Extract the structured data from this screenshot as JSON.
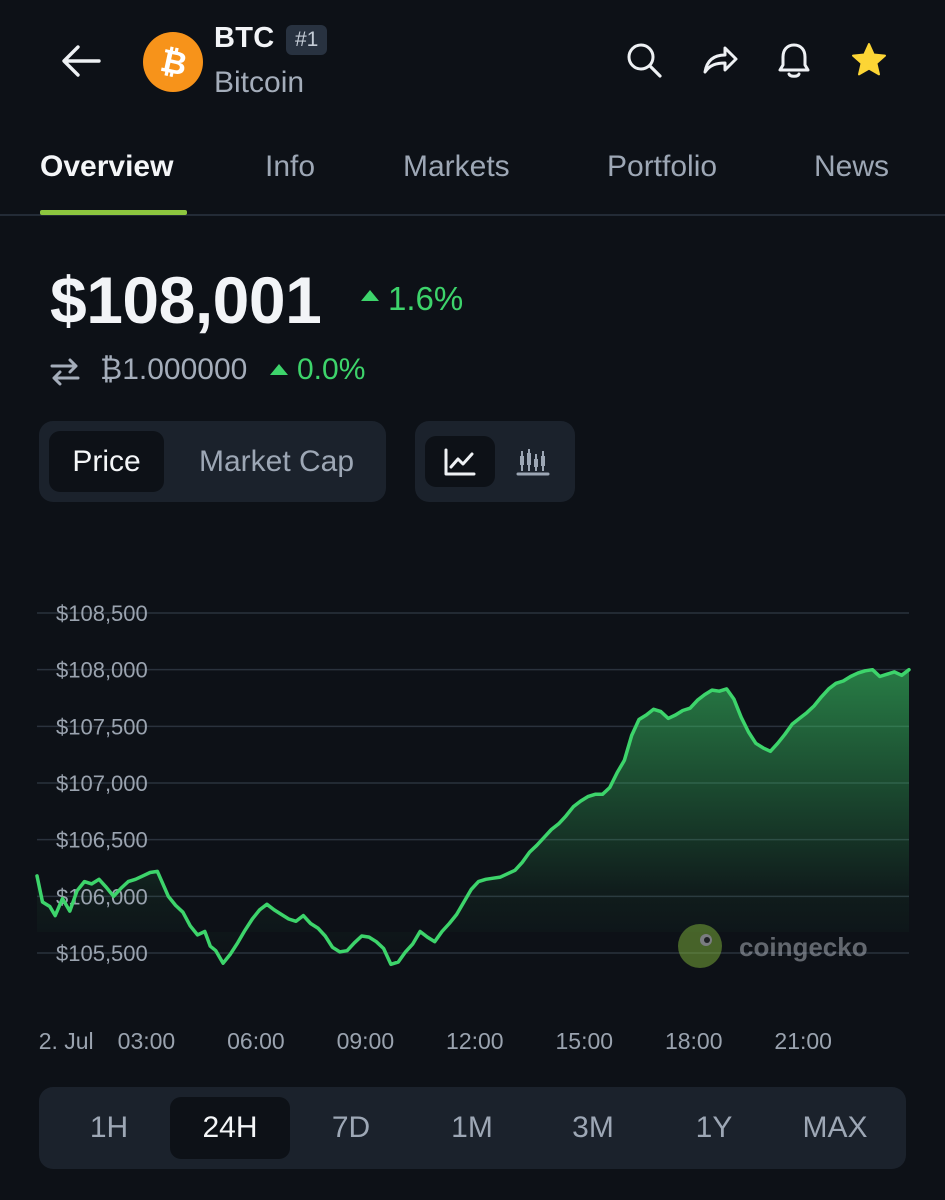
{
  "header": {
    "symbol": "BTC",
    "rank": "#1",
    "name": "Bitcoin",
    "icons": [
      "back-arrow-icon",
      "bitcoin-logo",
      "search-icon",
      "share-icon",
      "bell-icon",
      "star-icon"
    ]
  },
  "tabs": [
    {
      "label": "Overview",
      "active": true
    },
    {
      "label": "Info"
    },
    {
      "label": "Markets"
    },
    {
      "label": "Portfolio"
    },
    {
      "label": "News"
    }
  ],
  "price": {
    "usd": "$108,001",
    "usd_change": "1.6%",
    "btc": "₿1.000000",
    "btc_change": "0.0%"
  },
  "chart_toggle": {
    "options": [
      "Price",
      "Market Cap"
    ],
    "selected": "Price",
    "view_icons": [
      "line-chart-icon",
      "candlestick-chart-icon"
    ],
    "selected_view": "line-chart-icon"
  },
  "watermark": "coingecko",
  "colors": {
    "background": "#0d1117",
    "positive": "#3dd46b",
    "tab_underline": "#8dc63f",
    "bitcoin_orange": "#f7931a"
  },
  "chart_data": {
    "type": "area",
    "title": "",
    "xlabel": "",
    "ylabel": "",
    "ylim": [
      105400,
      108600
    ],
    "y_ticks": [
      {
        "value": 108500,
        "label": "$108,500"
      },
      {
        "value": 108000,
        "label": "$108,000"
      },
      {
        "value": 107500,
        "label": "$107,500"
      },
      {
        "value": 107000,
        "label": "$107,000"
      },
      {
        "value": 106500,
        "label": "$106,500"
      },
      {
        "value": 106000,
        "label": "$106,000"
      },
      {
        "value": 105500,
        "label": "$105,500"
      }
    ],
    "x_ticks": [
      {
        "hour": 0.8,
        "label": "2. Jul"
      },
      {
        "hour": 3,
        "label": "03:00"
      },
      {
        "hour": 6,
        "label": "06:00"
      },
      {
        "hour": 9,
        "label": "09:00"
      },
      {
        "hour": 12,
        "label": "12:00"
      },
      {
        "hour": 15,
        "label": "15:00"
      },
      {
        "hour": 18,
        "label": "18:00"
      },
      {
        "hour": 21,
        "label": "21:00"
      }
    ],
    "xlim": [
      0,
      23.9
    ],
    "grid": true,
    "series": [
      {
        "color": "#3dd46b",
        "points": [
          [
            0.0,
            106180
          ],
          [
            0.15,
            105950
          ],
          [
            0.35,
            105910
          ],
          [
            0.5,
            105830
          ],
          [
            0.7,
            105980
          ],
          [
            0.9,
            105870
          ],
          [
            1.1,
            106050
          ],
          [
            1.3,
            106130
          ],
          [
            1.5,
            106110
          ],
          [
            1.7,
            106150
          ],
          [
            1.9,
            106080
          ],
          [
            2.1,
            106000
          ],
          [
            2.3,
            106070
          ],
          [
            2.5,
            106130
          ],
          [
            2.7,
            106150
          ],
          [
            2.9,
            106180
          ],
          [
            3.1,
            106210
          ],
          [
            3.3,
            106220
          ],
          [
            3.45,
            106110
          ],
          [
            3.6,
            106000
          ],
          [
            3.8,
            105920
          ],
          [
            4.0,
            105860
          ],
          [
            4.2,
            105740
          ],
          [
            4.4,
            105660
          ],
          [
            4.6,
            105690
          ],
          [
            4.75,
            105560
          ],
          [
            4.9,
            105520
          ],
          [
            5.1,
            105410
          ],
          [
            5.3,
            105490
          ],
          [
            5.5,
            105590
          ],
          [
            5.7,
            105700
          ],
          [
            5.9,
            105800
          ],
          [
            6.1,
            105880
          ],
          [
            6.3,
            105930
          ],
          [
            6.5,
            105880
          ],
          [
            6.7,
            105840
          ],
          [
            6.9,
            105800
          ],
          [
            7.1,
            105780
          ],
          [
            7.3,
            105830
          ],
          [
            7.5,
            105760
          ],
          [
            7.7,
            105720
          ],
          [
            7.9,
            105650
          ],
          [
            8.1,
            105550
          ],
          [
            8.3,
            105510
          ],
          [
            8.5,
            105520
          ],
          [
            8.7,
            105590
          ],
          [
            8.9,
            105650
          ],
          [
            9.1,
            105640
          ],
          [
            9.3,
            105600
          ],
          [
            9.5,
            105540
          ],
          [
            9.7,
            105400
          ],
          [
            9.9,
            105420
          ],
          [
            10.1,
            105510
          ],
          [
            10.3,
            105580
          ],
          [
            10.5,
            105690
          ],
          [
            10.7,
            105640
          ],
          [
            10.9,
            105600
          ],
          [
            11.1,
            105690
          ],
          [
            11.3,
            105760
          ],
          [
            11.5,
            105840
          ],
          [
            11.7,
            105950
          ],
          [
            11.9,
            106060
          ],
          [
            12.1,
            106130
          ],
          [
            12.3,
            106150
          ],
          [
            12.5,
            106160
          ],
          [
            12.7,
            106170
          ],
          [
            12.9,
            106200
          ],
          [
            13.1,
            106230
          ],
          [
            13.3,
            106300
          ],
          [
            13.5,
            106390
          ],
          [
            13.7,
            106450
          ],
          [
            13.9,
            106520
          ],
          [
            14.1,
            106590
          ],
          [
            14.3,
            106640
          ],
          [
            14.5,
            106710
          ],
          [
            14.7,
            106790
          ],
          [
            14.9,
            106840
          ],
          [
            15.1,
            106880
          ],
          [
            15.3,
            106900
          ],
          [
            15.5,
            106900
          ],
          [
            15.7,
            106960
          ],
          [
            15.9,
            107090
          ],
          [
            16.1,
            107200
          ],
          [
            16.3,
            107420
          ],
          [
            16.5,
            107560
          ],
          [
            16.7,
            107600
          ],
          [
            16.9,
            107650
          ],
          [
            17.1,
            107630
          ],
          [
            17.3,
            107570
          ],
          [
            17.5,
            107600
          ],
          [
            17.7,
            107640
          ],
          [
            17.9,
            107660
          ],
          [
            18.1,
            107730
          ],
          [
            18.3,
            107780
          ],
          [
            18.5,
            107820
          ],
          [
            18.7,
            107810
          ],
          [
            18.9,
            107830
          ],
          [
            19.1,
            107740
          ],
          [
            19.3,
            107580
          ],
          [
            19.5,
            107450
          ],
          [
            19.7,
            107350
          ],
          [
            19.9,
            107310
          ],
          [
            20.1,
            107280
          ],
          [
            20.3,
            107350
          ],
          [
            20.5,
            107430
          ],
          [
            20.7,
            107520
          ],
          [
            20.9,
            107570
          ],
          [
            21.1,
            107620
          ],
          [
            21.3,
            107680
          ],
          [
            21.5,
            107760
          ],
          [
            21.7,
            107830
          ],
          [
            21.9,
            107880
          ],
          [
            22.1,
            107900
          ],
          [
            22.3,
            107940
          ],
          [
            22.5,
            107970
          ],
          [
            22.7,
            107990
          ],
          [
            22.9,
            108000
          ],
          [
            23.1,
            107940
          ],
          [
            23.3,
            107960
          ],
          [
            23.5,
            107980
          ],
          [
            23.7,
            107950
          ],
          [
            23.9,
            108000
          ]
        ]
      }
    ]
  },
  "ranges": [
    {
      "label": "1H"
    },
    {
      "label": "24H",
      "active": true
    },
    {
      "label": "7D"
    },
    {
      "label": "1M"
    },
    {
      "label": "3M"
    },
    {
      "label": "1Y"
    },
    {
      "label": "MAX"
    }
  ]
}
